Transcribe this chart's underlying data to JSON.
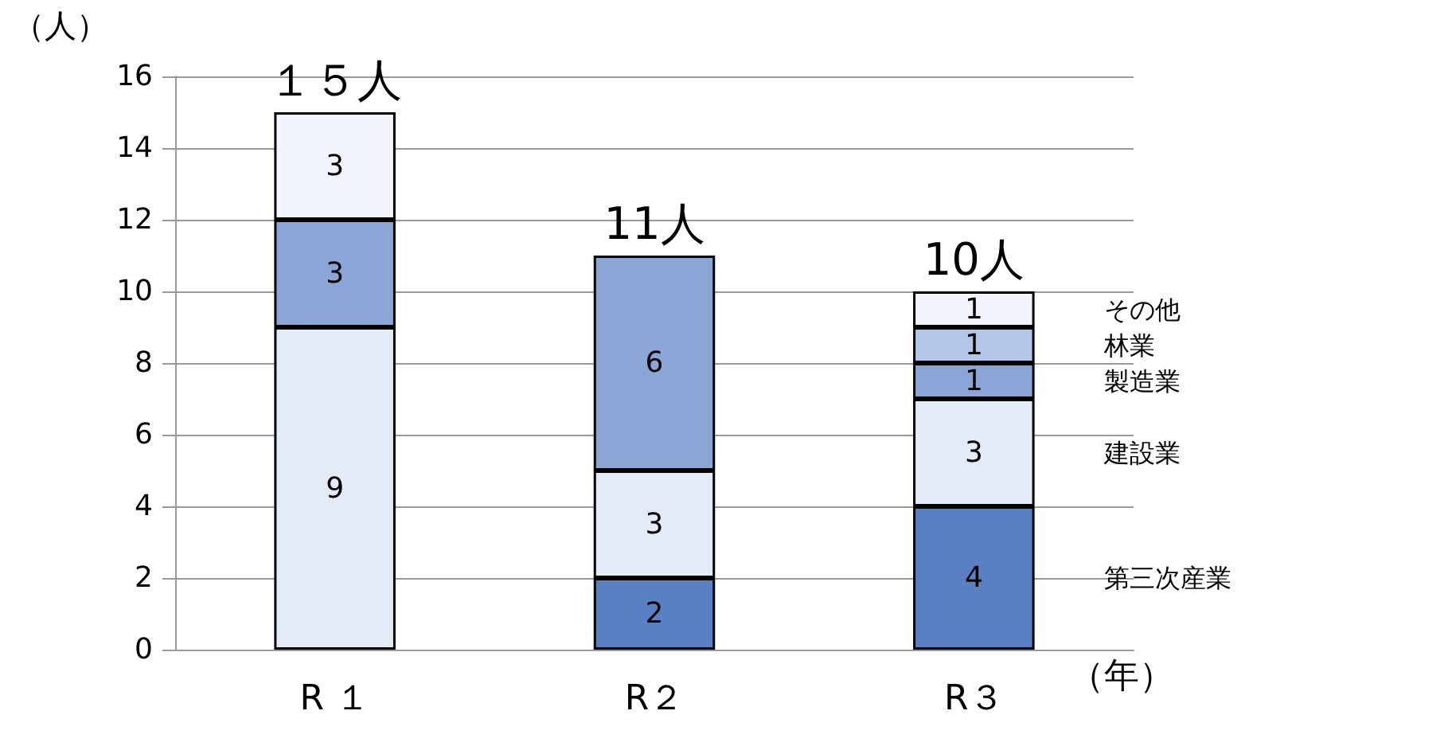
{
  "chart_data": {
    "type": "bar",
    "stacked": true,
    "xlabel": "（年）",
    "ylabel": "（人）",
    "categories": [
      "R １",
      "R２",
      "R３"
    ],
    "series": [
      {
        "name": "第三次産業",
        "color": "#5a80c4",
        "values": [
          null,
          2,
          4
        ]
      },
      {
        "name": "建設業",
        "color": "#e3ebf7",
        "values": [
          9,
          3,
          3
        ]
      },
      {
        "name": "製造業",
        "color": "#8aa6d6",
        "values": [
          3,
          6,
          1
        ]
      },
      {
        "name": "林業",
        "color": "#b3c6e8",
        "values": [
          null,
          null,
          1
        ]
      },
      {
        "name": "その他",
        "color": "#f1f5fb",
        "values": [
          3,
          null,
          1
        ]
      }
    ],
    "totals": [
      "１５人",
      "11人",
      "10人"
    ],
    "ylim": [
      0,
      16
    ],
    "yticks": [
      0,
      2,
      4,
      6,
      8,
      10,
      12,
      14,
      16
    ],
    "grid": "y",
    "data_labels": true
  }
}
